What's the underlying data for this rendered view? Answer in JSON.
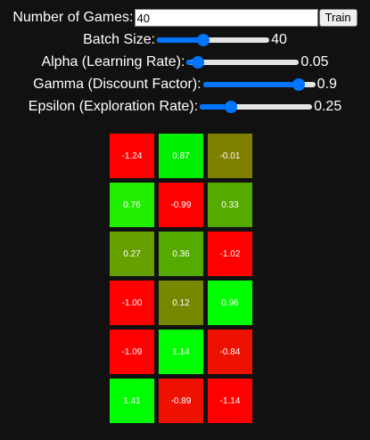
{
  "games": {
    "label": "Number of Games:",
    "value": "40",
    "button_label": "Train"
  },
  "sliders": [
    {
      "name": "batch-size",
      "label": "Batch Size:",
      "value": "40",
      "fraction": 0.4
    },
    {
      "name": "alpha",
      "label": "Alpha (Learning Rate):",
      "value": "0.05",
      "fraction": 0.05
    },
    {
      "name": "gamma",
      "label": "Gamma (Discount Factor):",
      "value": "0.9",
      "fraction": 0.9
    },
    {
      "name": "epsilon",
      "label": "Epsilon (Exploration Rate):",
      "value": "0.25",
      "fraction": 0.25
    }
  ],
  "grid": {
    "rows": [
      [
        {
          "value": "-1.24",
          "color": "#ff0000"
        },
        {
          "value": "0.87",
          "color": "#00ee00"
        },
        {
          "value": "-0.01",
          "color": "#7f7f00"
        }
      ],
      [
        {
          "value": "0.76",
          "color": "#22ee00"
        },
        {
          "value": "-0.99",
          "color": "#ff0000"
        },
        {
          "value": "0.33",
          "color": "#55aa00"
        }
      ],
      [
        {
          "value": "0.27",
          "color": "#66a000"
        },
        {
          "value": "0.36",
          "color": "#55aa00"
        },
        {
          "value": "-1.02",
          "color": "#ff0000"
        }
      ],
      [
        {
          "value": "-1.00",
          "color": "#ff0000"
        },
        {
          "value": "0.12",
          "color": "#758800"
        },
        {
          "value": "0.96",
          "color": "#00ff00"
        }
      ],
      [
        {
          "value": "-1.09",
          "color": "#ff0000"
        },
        {
          "value": "1.14",
          "color": "#00ff00"
        },
        {
          "value": "-0.84",
          "color": "#ee1100"
        }
      ],
      [
        {
          "value": "1.41",
          "color": "#00ff00"
        },
        {
          "value": "-0.89",
          "color": "#ee1100"
        },
        {
          "value": "-1.14",
          "color": "#ff0000"
        }
      ]
    ]
  }
}
